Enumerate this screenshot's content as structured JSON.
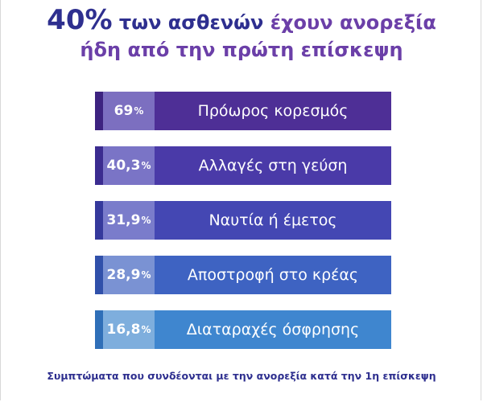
{
  "title": {
    "line1_pct": "40%",
    "line1_mid": " των ασθενών ",
    "line1_end": "έχουν ανορεξία",
    "line2": "ήδη από την πρώτη επίσκεψη"
  },
  "footer": "Συμπτώματα που συνδέονται με την ανορεξία κατά την 1η επίσκεψη",
  "chart_data": {
    "type": "bar",
    "orientation": "horizontal",
    "categories": [
      "Πρόωρος κορεσμός",
      "Αλλαγές στη γεύση",
      "Ναυτία ή έμετος",
      "Αποστροφή στο κρέας",
      "Διαταραχές όσφρησης"
    ],
    "values": [
      69,
      40.3,
      31.9,
      28.9,
      16.8
    ],
    "value_labels": [
      "69",
      "40,3",
      "31,9",
      "28,9",
      "16,8"
    ],
    "unit": "%",
    "title": "40% των ασθενών έχουν ανορεξία ήδη από την πρώτη επίσκεψη",
    "colors": {
      "bars": [
        "#4e2f96",
        "#4a3aa8",
        "#4447b3",
        "#3e63c2",
        "#3f86cf"
      ],
      "value_boxes": [
        "#7c6fc0",
        "#7a74c6",
        "#7a7ccb",
        "#7a92d3",
        "#7eaedd"
      ],
      "edges": [
        "#3d2380",
        "#3b2c90",
        "#35399c",
        "#3050aa",
        "#2f6fb8"
      ]
    }
  }
}
